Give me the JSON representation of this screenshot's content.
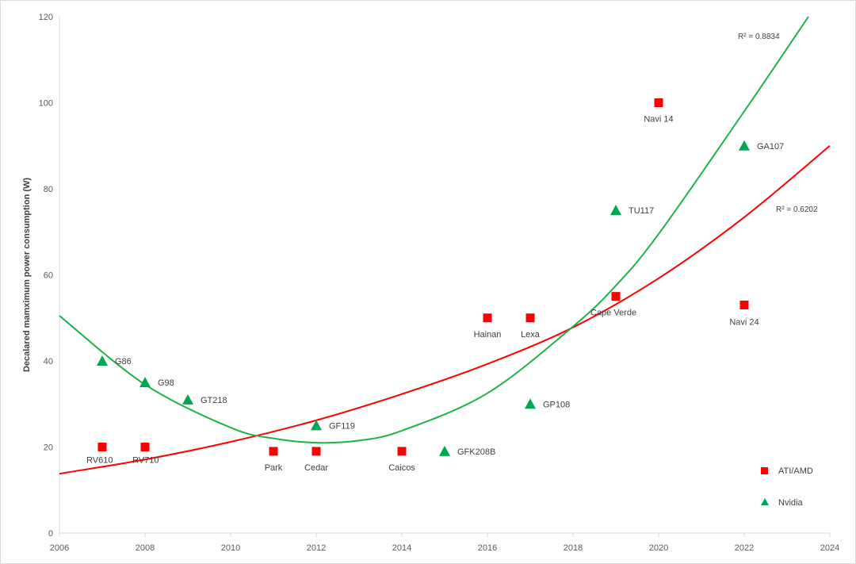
{
  "chart_data": {
    "type": "scatter",
    "ylabel": "Decalared mamximum power consumption (W)",
    "xlabel": "",
    "xlim": [
      2006,
      2024
    ],
    "ylim": [
      0,
      120
    ],
    "x_ticks": [
      2006,
      2008,
      2010,
      2012,
      2014,
      2016,
      2018,
      2020,
      2022,
      2024
    ],
    "y_ticks": [
      0,
      20,
      40,
      60,
      80,
      100,
      120
    ],
    "grid": false,
    "legend_position": "bottom-right",
    "colors": {
      "amd": "#ff0000",
      "nvidia": "#00a650",
      "amd_trend": "#ff0000",
      "nvidia_trend": "#1fb24a",
      "axis": "#d9d9d9"
    },
    "series": [
      {
        "name": "ATI/AMD",
        "marker": "square",
        "points": [
          {
            "label": "RV610",
            "x": 2007,
            "y": 20
          },
          {
            "label": "RV710",
            "x": 2008,
            "y": 20
          },
          {
            "label": "Park",
            "x": 2011,
            "y": 19
          },
          {
            "label": "Cedar",
            "x": 2012,
            "y": 19
          },
          {
            "label": "Caicos",
            "x": 2014,
            "y": 19
          },
          {
            "label": "Hainan",
            "x": 2016,
            "y": 50
          },
          {
            "label": "Lexa",
            "x": 2017,
            "y": 50
          },
          {
            "label": "Cape Verde",
            "x": 2019,
            "y": 55
          },
          {
            "label": "Navi 14",
            "x": 2020,
            "y": 100
          },
          {
            "label": "Navi 24",
            "x": 2022,
            "y": 53
          }
        ]
      },
      {
        "name": "Nvidia",
        "marker": "triangle",
        "points": [
          {
            "label": "G86",
            "x": 2007,
            "y": 40
          },
          {
            "label": "G98",
            "x": 2008,
            "y": 35
          },
          {
            "label": "GT218",
            "x": 2009,
            "y": 31
          },
          {
            "label": "GF119",
            "x": 2012,
            "y": 25
          },
          {
            "label": "GFK208B",
            "x": 2015,
            "y": 19
          },
          {
            "label": "GP108",
            "x": 2017,
            "y": 30
          },
          {
            "label": "TU117",
            "x": 2019,
            "y": 75
          },
          {
            "label": "GA107",
            "x": 2022,
            "y": 90
          }
        ]
      }
    ],
    "trendlines": [
      {
        "series": "ATI/AMD",
        "type": "exponential",
        "r2_label": "R² = 0.6202",
        "samples": [
          [
            2006,
            13.8
          ],
          [
            2008,
            17.1
          ],
          [
            2010,
            21.2
          ],
          [
            2012,
            26.2
          ],
          [
            2014,
            32.3
          ],
          [
            2016,
            39.3
          ],
          [
            2018,
            47.8
          ],
          [
            2020,
            59.2
          ],
          [
            2022,
            73.4
          ],
          [
            2024,
            90.0
          ]
        ]
      },
      {
        "series": "Nvidia",
        "type": "polynomial",
        "r2_label": "R² = 0.8834",
        "samples": [
          [
            2006,
            50.5
          ],
          [
            2008,
            34.5
          ],
          [
            2010,
            24.5
          ],
          [
            2011,
            22.0
          ],
          [
            2012,
            21.0
          ],
          [
            2013,
            21.5
          ],
          [
            2014,
            23.8
          ],
          [
            2016,
            32.5
          ],
          [
            2018,
            48.0
          ],
          [
            2019,
            57.5
          ],
          [
            2020,
            69.5
          ],
          [
            2022,
            98.0
          ],
          [
            2023.5,
            120
          ]
        ]
      }
    ]
  }
}
